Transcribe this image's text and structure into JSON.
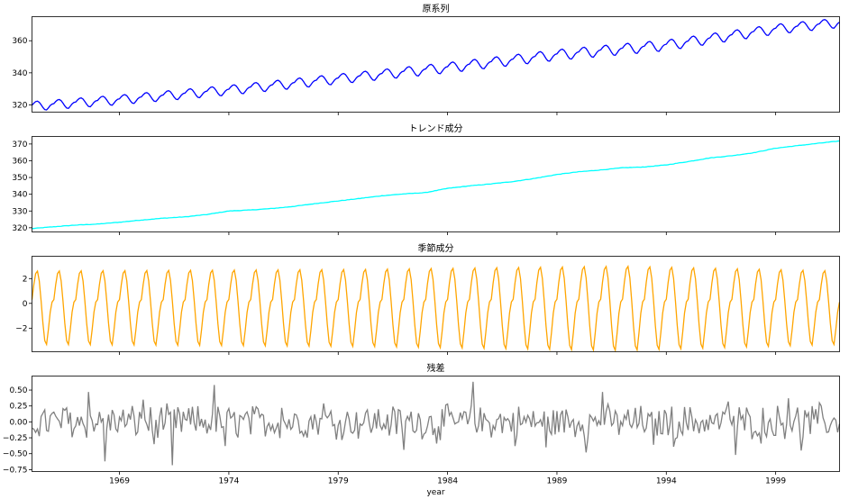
{
  "chart_data": [
    {
      "type": "line",
      "title": "原系列",
      "color": "#0000ff",
      "xlim": [
        1965.0,
        2001.92
      ],
      "ylim": [
        315.5,
        375
      ],
      "yticks": [
        320,
        340,
        360
      ],
      "ytick_labels": [
        "320",
        "340",
        "360"
      ],
      "grid": false,
      "series": [
        {
          "x_start": 1965.0,
          "x_step": "monthly",
          "trend_knots": {
            "x": [
              1965,
              1969,
              1974,
              1979,
              1984,
              1989,
              1994,
              1999,
              2001.92
            ],
            "y": [
              319.5,
              323.5,
              329.5,
              336.5,
              343.5,
              351.5,
              357.5,
              367.5,
              371.5
            ]
          },
          "seasonal_amplitude": 3.0,
          "description_points": [
            {
              "x": 1965.0,
              "y": 319.5
            },
            {
              "x": 1966.3,
              "y": 324.0
            },
            {
              "x": 1971.3,
              "y": 328.5
            },
            {
              "x": 1976.3,
              "y": 333.5
            },
            {
              "x": 1981.3,
              "y": 341.0
            },
            {
              "x": 1986.3,
              "y": 348.5
            },
            {
              "x": 1991.3,
              "y": 355.5
            },
            {
              "x": 1996.3,
              "y": 363.5
            },
            {
              "x": 2001.3,
              "y": 373.5
            }
          ]
        }
      ]
    },
    {
      "type": "line",
      "title": "トレンド成分",
      "color": "#00ffff",
      "xlim": [
        1965.0,
        2001.92
      ],
      "ylim": [
        317.5,
        374.5
      ],
      "yticks": [
        320,
        330,
        340,
        350,
        360,
        370
      ],
      "ytick_labels": [
        "320",
        "330",
        "340",
        "350",
        "360",
        "370"
      ],
      "grid": false,
      "series": [
        {
          "x": [
            1965,
            1966,
            1967,
            1968,
            1969,
            1970,
            1971,
            1972,
            1973,
            1974,
            1975,
            1976,
            1977,
            1978,
            1979,
            1980,
            1981,
            1982,
            1983,
            1984,
            1985,
            1986,
            1987,
            1988,
            1989,
            1990,
            1991,
            1992,
            1993,
            1994,
            1995,
            1996,
            1997,
            1998,
            1999,
            2000,
            2001,
            2001.92
          ],
          "y": [
            319.5,
            320.6,
            321.6,
            322.2,
            323.3,
            324.6,
            325.7,
            326.5,
            327.9,
            330.0,
            330.6,
            331.5,
            332.8,
            334.5,
            336.0,
            337.5,
            339.1,
            340.2,
            341.0,
            343.5,
            345.0,
            346.2,
            347.6,
            349.5,
            351.8,
            353.4,
            354.5,
            355.8,
            356.3,
            357.5,
            359.5,
            361.7,
            363.0,
            364.8,
            367.5,
            369.0,
            370.5,
            371.8
          ]
        }
      ]
    },
    {
      "type": "line",
      "title": "季節成分",
      "color": "#ffa500",
      "xlim": [
        1965.0,
        2001.92
      ],
      "ylim": [
        -3.9,
        3.8
      ],
      "yticks": [
        -2,
        0,
        2
      ],
      "ytick_labels": [
        "−2",
        "0",
        "2"
      ],
      "grid": false,
      "series": [
        {
          "x_start": 1965.0,
          "x_step": "monthly",
          "monthly_pattern": [
            0.3,
            1.5,
            2.4,
            2.6,
            1.8,
            0.2,
            -1.6,
            -3.0,
            -3.3,
            -2.1,
            -0.7,
            0.1
          ],
          "amplitude_knots": {
            "x": [
              1965,
              1980,
              1992,
              2001.92
            ],
            "scale": [
              1.0,
              1.05,
              1.15,
              1.0
            ]
          }
        }
      ]
    },
    {
      "type": "line",
      "title": "残差",
      "color": "#808080",
      "xlim": [
        1965.0,
        2001.92
      ],
      "ylim": [
        -0.78,
        0.72
      ],
      "yticks": [
        -0.75,
        -0.5,
        -0.25,
        0.0,
        0.25,
        0.5
      ],
      "ytick_labels": [
        "−0.75",
        "−0.50",
        "−0.25",
        "0.00",
        "0.25",
        "0.50"
      ],
      "grid": false,
      "series": [
        {
          "x_start": 1965.0,
          "x_step": "monthly",
          "notable_points": [
            {
              "x": 1966.6,
              "y": 0.22
            },
            {
              "x": 1967.6,
              "y": 0.47
            },
            {
              "x": 1968.3,
              "y": -0.62
            },
            {
              "x": 1970.1,
              "y": 0.35
            },
            {
              "x": 1970.6,
              "y": -0.35
            },
            {
              "x": 1971.4,
              "y": -0.68
            },
            {
              "x": 1973.3,
              "y": 0.58
            },
            {
              "x": 1973.8,
              "y": -0.38
            },
            {
              "x": 1976.4,
              "y": 0.22
            },
            {
              "x": 1978.3,
              "y": 0.29
            },
            {
              "x": 1982.0,
              "y": -0.44
            },
            {
              "x": 1983.5,
              "y": -0.34
            },
            {
              "x": 1985.2,
              "y": 0.63
            },
            {
              "x": 1987.1,
              "y": -0.38
            },
            {
              "x": 1988.5,
              "y": -0.4
            },
            {
              "x": 1990.3,
              "y": -0.48
            },
            {
              "x": 1991.1,
              "y": 0.47
            },
            {
              "x": 1993.4,
              "y": -0.36
            },
            {
              "x": 1994.3,
              "y": -0.39
            },
            {
              "x": 1996.8,
              "y": 0.32
            },
            {
              "x": 1997.2,
              "y": -0.52
            },
            {
              "x": 1998.3,
              "y": -0.34
            },
            {
              "x": 1999.6,
              "y": 0.37
            },
            {
              "x": 2000.2,
              "y": -0.45
            },
            {
              "x": 2001.0,
              "y": 0.3
            }
          ]
        }
      ]
    }
  ],
  "x_axis": {
    "label": "year",
    "ticks": [
      1969,
      1974,
      1979,
      1984,
      1989,
      1994,
      1999
    ],
    "tick_labels": [
      "1969",
      "1974",
      "1979",
      "1984",
      "1989",
      "1994",
      "1999"
    ]
  }
}
